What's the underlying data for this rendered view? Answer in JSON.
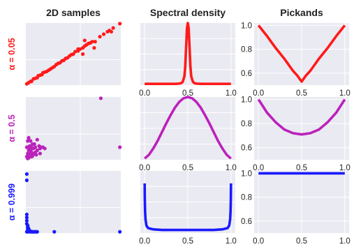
{
  "chart_data": [
    {
      "type": "scatter",
      "panel": "samples",
      "row": 0,
      "title": "2D samples",
      "row_label": "α = 0.05",
      "color": "#ff1a1a",
      "grid": true,
      "x_ticks": [],
      "y_ticks": [],
      "xlim": [
        0,
        1
      ],
      "ylim": [
        0,
        1
      ],
      "points": [
        [
          0.01,
          0.02
        ],
        [
          0.03,
          0.04
        ],
        [
          0.05,
          0.06
        ],
        [
          0.06,
          0.06
        ],
        [
          0.08,
          0.1
        ],
        [
          0.1,
          0.11
        ],
        [
          0.12,
          0.12
        ],
        [
          0.13,
          0.15
        ],
        [
          0.15,
          0.16
        ],
        [
          0.17,
          0.17
        ],
        [
          0.18,
          0.2
        ],
        [
          0.2,
          0.21
        ],
        [
          0.22,
          0.22
        ],
        [
          0.24,
          0.24
        ],
        [
          0.26,
          0.26
        ],
        [
          0.28,
          0.28
        ],
        [
          0.3,
          0.3
        ],
        [
          0.32,
          0.33
        ],
        [
          0.34,
          0.35
        ],
        [
          0.36,
          0.36
        ],
        [
          0.38,
          0.39
        ],
        [
          0.4,
          0.4
        ],
        [
          0.42,
          0.43
        ],
        [
          0.44,
          0.44
        ],
        [
          0.46,
          0.47
        ],
        [
          0.48,
          0.49
        ],
        [
          0.5,
          0.5
        ],
        [
          0.52,
          0.54
        ],
        [
          0.55,
          0.55
        ],
        [
          0.57,
          0.58
        ],
        [
          0.6,
          0.6
        ],
        [
          0.62,
          0.63
        ],
        [
          0.64,
          0.65
        ],
        [
          0.66,
          0.67
        ],
        [
          0.68,
          0.68
        ],
        [
          0.7,
          0.7
        ],
        [
          0.73,
          0.7
        ],
        [
          0.55,
          0.58
        ],
        [
          0.6,
          0.5
        ],
        [
          0.62,
          0.72
        ],
        [
          0.72,
          0.6
        ],
        [
          0.78,
          0.78
        ],
        [
          0.82,
          0.82
        ],
        [
          0.86,
          0.86
        ],
        [
          0.88,
          0.88
        ],
        [
          0.9,
          0.86
        ],
        [
          0.92,
          0.92
        ],
        [
          0.99,
          0.99
        ]
      ]
    },
    {
      "type": "line",
      "panel": "spectral",
      "row": 0,
      "title": "Spectral density",
      "color": "#ff1a1a",
      "grid": true,
      "x_ticks": [
        "0.0",
        "0.5",
        "1.0"
      ],
      "y_ticks": [],
      "xlim": [
        -0.05,
        1.05
      ],
      "ylim": [
        0,
        1
      ],
      "x": [
        0,
        0.05,
        0.1,
        0.15,
        0.2,
        0.25,
        0.3,
        0.35,
        0.4,
        0.42,
        0.44,
        0.46,
        0.47,
        0.48,
        0.49,
        0.5,
        0.51,
        0.52,
        0.53,
        0.54,
        0.56,
        0.58,
        0.6,
        0.65,
        0.7,
        0.75,
        0.8,
        0.85,
        0.9,
        0.95,
        1.0
      ],
      "y": [
        0.02,
        0.02,
        0.02,
        0.02,
        0.02,
        0.02,
        0.02,
        0.02,
        0.025,
        0.03,
        0.05,
        0.14,
        0.3,
        0.6,
        0.92,
        1.0,
        0.92,
        0.6,
        0.3,
        0.14,
        0.05,
        0.03,
        0.025,
        0.02,
        0.02,
        0.02,
        0.02,
        0.02,
        0.02,
        0.02,
        0.02
      ]
    },
    {
      "type": "line",
      "panel": "pickands",
      "row": 0,
      "title": "Pickands",
      "color": "#ff1a1a",
      "grid": true,
      "x_ticks": [
        "0.0",
        "0.5",
        "1.0"
      ],
      "y_ticks": [
        "0.6",
        "0.8",
        "1.0"
      ],
      "xlim": [
        -0.05,
        1.05
      ],
      "ylim": [
        0.5,
        1.02
      ],
      "x": [
        0,
        0.1,
        0.2,
        0.3,
        0.4,
        0.45,
        0.5,
        0.55,
        0.6,
        0.7,
        0.8,
        0.9,
        1.0
      ],
      "y": [
        1.0,
        0.91,
        0.81,
        0.72,
        0.62,
        0.58,
        0.53,
        0.58,
        0.62,
        0.72,
        0.81,
        0.91,
        1.0
      ]
    },
    {
      "type": "scatter",
      "panel": "samples",
      "row": 1,
      "row_label": "α = 0.5",
      "color": "#bb22bb",
      "grid": true,
      "x_ticks": [],
      "y_ticks": [],
      "xlim": [
        0,
        1
      ],
      "ylim": [
        0,
        1
      ],
      "points": [
        [
          0.01,
          0.05
        ],
        [
          0.02,
          0.1
        ],
        [
          0.03,
          0.2
        ],
        [
          0.02,
          0.3
        ],
        [
          0.04,
          0.22
        ],
        [
          0.05,
          0.15
        ],
        [
          0.06,
          0.05
        ],
        [
          0.07,
          0.25
        ],
        [
          0.08,
          0.18
        ],
        [
          0.1,
          0.2
        ],
        [
          0.12,
          0.32
        ],
        [
          0.14,
          0.22
        ],
        [
          0.15,
          0.18
        ],
        [
          0.02,
          0.05
        ],
        [
          0.03,
          0.03
        ],
        [
          0.05,
          0.1
        ],
        [
          0.04,
          0.08
        ],
        [
          0.06,
          0.12
        ],
        [
          0.08,
          0.09
        ],
        [
          0.1,
          0.12
        ],
        [
          0.03,
          0.15
        ],
        [
          0.04,
          0.18
        ],
        [
          0.06,
          0.2
        ],
        [
          0.01,
          0.2
        ],
        [
          0.05,
          0.3
        ],
        [
          0.09,
          0.25
        ],
        [
          0.12,
          0.15
        ],
        [
          0.15,
          0.1
        ],
        [
          0.16,
          0.2
        ],
        [
          0.02,
          0.02
        ],
        [
          0.07,
          0.06
        ],
        [
          0.11,
          0.08
        ],
        [
          0.18,
          0.2
        ],
        [
          0.2,
          0.18
        ],
        [
          0.03,
          0.35
        ],
        [
          0.79,
          0.98
        ],
        [
          0.99,
          0.2
        ]
      ]
    },
    {
      "type": "line",
      "panel": "spectral",
      "row": 1,
      "color": "#bb22bb",
      "grid": true,
      "x_ticks": [
        "0.0",
        "0.5",
        "1.0"
      ],
      "y_ticks": [],
      "xlim": [
        -0.05,
        1.05
      ],
      "ylim": [
        0,
        1
      ],
      "x": [
        0,
        0.05,
        0.1,
        0.15,
        0.2,
        0.25,
        0.3,
        0.35,
        0.4,
        0.45,
        0.5,
        0.55,
        0.6,
        0.65,
        0.7,
        0.75,
        0.8,
        0.85,
        0.9,
        0.95,
        1.0
      ],
      "y": [
        0.02,
        0.08,
        0.18,
        0.3,
        0.44,
        0.58,
        0.71,
        0.83,
        0.92,
        0.98,
        1.0,
        0.98,
        0.92,
        0.83,
        0.71,
        0.58,
        0.44,
        0.3,
        0.18,
        0.08,
        0.02
      ]
    },
    {
      "type": "line",
      "panel": "pickands",
      "row": 1,
      "color": "#bb22bb",
      "grid": true,
      "x_ticks": [
        "0.0",
        "0.5",
        "1.0"
      ],
      "y_ticks": [
        "0.6",
        "0.8",
        "1.0"
      ],
      "xlim": [
        -0.05,
        1.05
      ],
      "ylim": [
        0.5,
        1.02
      ],
      "x": [
        0,
        0.1,
        0.2,
        0.3,
        0.4,
        0.5,
        0.6,
        0.7,
        0.8,
        0.9,
        1.0
      ],
      "y": [
        1.0,
        0.89,
        0.81,
        0.75,
        0.72,
        0.71,
        0.72,
        0.75,
        0.81,
        0.89,
        1.0
      ]
    },
    {
      "type": "scatter",
      "panel": "samples",
      "row": 2,
      "row_label": "α = 0.999",
      "color": "#1a1aff",
      "grid": true,
      "x_ticks": [],
      "y_ticks": [],
      "xlim": [
        0,
        1
      ],
      "ylim": [
        0,
        1
      ],
      "points": [
        [
          0.01,
          0.95
        ],
        [
          0.01,
          0.85
        ],
        [
          0.01,
          0.3
        ],
        [
          0.01,
          0.25
        ],
        [
          0.01,
          0.2
        ],
        [
          0.01,
          0.15
        ],
        [
          0.02,
          0.12
        ],
        [
          0.02,
          0.1
        ],
        [
          0.02,
          0.08
        ],
        [
          0.03,
          0.07
        ],
        [
          0.02,
          0.05
        ],
        [
          0.03,
          0.04
        ],
        [
          0.04,
          0.03
        ],
        [
          0.05,
          0.03
        ],
        [
          0.06,
          0.02
        ],
        [
          0.08,
          0.02
        ],
        [
          0.1,
          0.02
        ],
        [
          0.12,
          0.02
        ],
        [
          0.02,
          0.02
        ],
        [
          0.04,
          0.02
        ],
        [
          0.01,
          0.02
        ],
        [
          0.07,
          0.02
        ],
        [
          0.09,
          0.02
        ],
        [
          0.11,
          0.02
        ],
        [
          0.3,
          0.02
        ],
        [
          0.99,
          0.02
        ]
      ]
    },
    {
      "type": "line",
      "panel": "spectral",
      "row": 2,
      "color": "#1a1aff",
      "grid": true,
      "x_ticks": [
        "0.0",
        "0.5",
        "1.0"
      ],
      "y_ticks": [],
      "xlim": [
        -0.05,
        1.05
      ],
      "ylim": [
        0,
        1
      ],
      "x": [
        0,
        0.002,
        0.005,
        0.01,
        0.02,
        0.04,
        0.1,
        0.2,
        0.3,
        0.4,
        0.5,
        0.6,
        0.7,
        0.8,
        0.9,
        0.96,
        0.98,
        0.99,
        0.995,
        0.998,
        1.0
      ],
      "y": [
        0.8,
        0.55,
        0.35,
        0.22,
        0.12,
        0.08,
        0.06,
        0.05,
        0.05,
        0.05,
        0.05,
        0.05,
        0.05,
        0.05,
        0.06,
        0.08,
        0.12,
        0.22,
        0.35,
        0.55,
        0.8
      ]
    },
    {
      "type": "line",
      "panel": "pickands",
      "row": 2,
      "color": "#1a1aff",
      "grid": true,
      "x_ticks": [
        "0.0",
        "0.5",
        "1.0"
      ],
      "y_ticks": [
        "0.6",
        "0.8",
        "1.0"
      ],
      "xlim": [
        -0.05,
        1.05
      ],
      "ylim": [
        0.5,
        1.02
      ],
      "x": [
        0,
        1
      ],
      "y": [
        1.0,
        1.0
      ]
    }
  ]
}
